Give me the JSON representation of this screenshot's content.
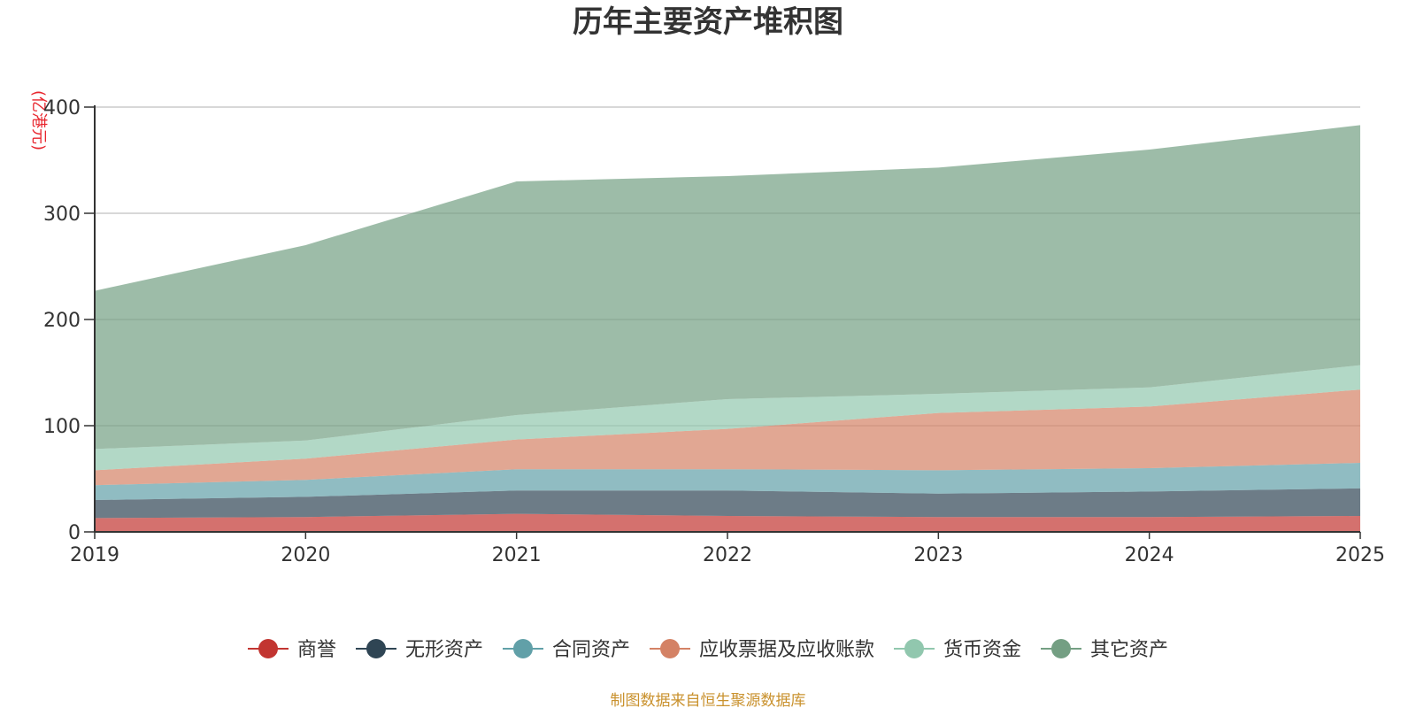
{
  "chart_data": {
    "type": "area",
    "stacked": true,
    "title": "历年主要资产堆积图",
    "ylabel": "(亿港元)",
    "xlabel": "",
    "x": [
      "2019",
      "2020",
      "2021",
      "2022",
      "2023",
      "2024",
      "2025"
    ],
    "ylim": [
      0,
      400
    ],
    "yticks": [
      0,
      100,
      200,
      300,
      400
    ],
    "grid": true,
    "legend_position": "bottom",
    "series": [
      {
        "name": "商誉",
        "color": "#c23531",
        "values": [
          13,
          14,
          17,
          15,
          14,
          14,
          15
        ]
      },
      {
        "name": "无形资产",
        "color": "#2f4554",
        "values": [
          17,
          19,
          22,
          24,
          22,
          24,
          26
        ]
      },
      {
        "name": "合同资产",
        "color": "#61a0a8",
        "values": [
          14,
          16,
          20,
          20,
          22,
          22,
          24
        ]
      },
      {
        "name": "应收票据及应收账款",
        "color": "#d48265",
        "values": [
          14,
          20,
          28,
          38,
          54,
          58,
          69
        ]
      },
      {
        "name": "货币资金",
        "color": "#91c7ae",
        "values": [
          20,
          17,
          23,
          28,
          18,
          18,
          23
        ]
      },
      {
        "name": "其它资产",
        "color": "#749f83",
        "values": [
          149,
          184,
          220,
          210,
          213,
          224,
          226
        ]
      }
    ],
    "source": "制图数据来自恒生聚源数据库"
  }
}
